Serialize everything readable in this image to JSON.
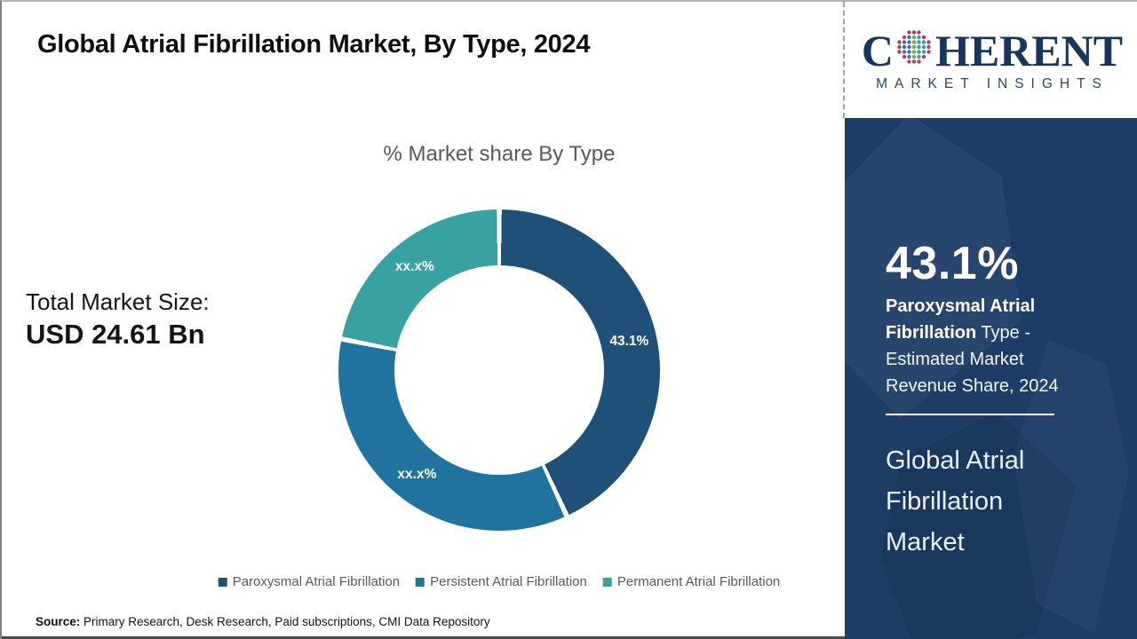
{
  "page": {
    "title": "Global Atrial Fibrillation Market, By Type, 2024"
  },
  "logo": {
    "name_left": "C",
    "name_right": "HERENT",
    "tagline": "MARKET INSIGHTS"
  },
  "chart_data": {
    "type": "donut",
    "title": "% Market share By Type",
    "categories": [
      "Paroxysmal Atrial Fibrillation",
      "Persistent Atrial Fibrillation",
      "Permanent Atrial Fibrillation"
    ],
    "values": [
      43.1,
      35.0,
      21.9
    ],
    "slice_labels": [
      "43.1%",
      "xx.x%",
      "xx.x%"
    ],
    "colors": [
      "#1F5078",
      "#1F739E",
      "#38A2A0"
    ],
    "separator_color": "#FFFFFF",
    "label_color": "#FFFFFF",
    "inner_radius_ratio": 0.65,
    "start_angle_deg": 0,
    "direction": "clockwise",
    "legend_position": "bottom"
  },
  "stats": {
    "total_label": "Total Market Size:",
    "total_value": "USD 24.61 Bn"
  },
  "side_panel": {
    "bg_color": "#1D3C66",
    "pct": "43.1%",
    "desc_bold": "Paroxysmal Atrial Fibrillation",
    "desc_rest": " Type - Estimated Market Revenue Share, 2024",
    "headline": "Global Atrial Fibrillation Market"
  },
  "source": {
    "label": "Source:",
    "text": " Primary Research, Desk Research, Paid subscriptions, CMI Data Repository"
  }
}
